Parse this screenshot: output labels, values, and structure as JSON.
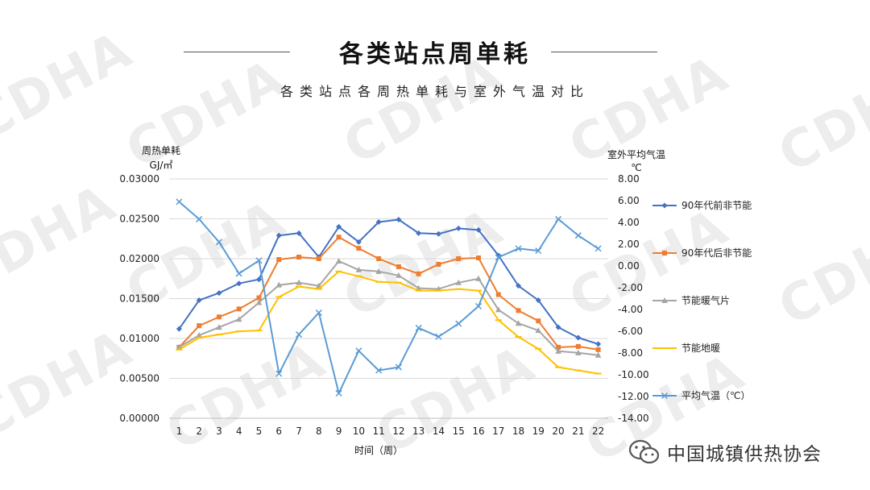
{
  "page": {
    "title": "各类站点周单耗",
    "subtitle": "各类站点各周热单耗与室外气温对比",
    "watermark": "CDHA",
    "brand": "中国城镇供热协会"
  },
  "chart_data": {
    "type": "line",
    "title": "各类站点各周热单耗与室外气温对比",
    "xlabel": "时间（周）",
    "ylabel_left": [
      "周热单耗",
      "GJ/㎡"
    ],
    "ylabel_right": [
      "室外平均气温",
      "℃"
    ],
    "categories": [
      1,
      2,
      3,
      4,
      5,
      6,
      7,
      8,
      9,
      10,
      11,
      12,
      13,
      14,
      15,
      16,
      17,
      18,
      19,
      20,
      21,
      22
    ],
    "y_left": {
      "min": 0,
      "max": 0.03,
      "step": 0.005,
      "ticks": [
        "0.00000",
        "0.00500",
        "0.01000",
        "0.01500",
        "0.02000",
        "0.02500",
        "0.03000"
      ]
    },
    "y_right": {
      "min": -14,
      "max": 8,
      "step": 2,
      "ticks": [
        "-14.00",
        "-12.00",
        "-10.00",
        "-8.00",
        "-6.00",
        "-4.00",
        "-2.00",
        "0.00",
        "2.00",
        "4.00",
        "6.00",
        "8.00"
      ]
    },
    "grid": true,
    "legend_position": "right",
    "series": [
      {
        "name": "90年代前非节能",
        "axis": "left",
        "color": "#4472C4",
        "marker": "diamond",
        "values": [
          0.0112,
          0.0148,
          0.0157,
          0.0169,
          0.0174,
          0.0229,
          0.0232,
          0.0202,
          0.024,
          0.0221,
          0.0246,
          0.0249,
          0.0232,
          0.0231,
          0.0238,
          0.0236,
          0.0204,
          0.0166,
          0.0148,
          0.0114,
          0.0101,
          0.0093
        ]
      },
      {
        "name": "90年代后非节能",
        "axis": "left",
        "color": "#ED7D31",
        "marker": "square",
        "values": [
          0.0089,
          0.0116,
          0.0127,
          0.0137,
          0.0151,
          0.0199,
          0.0202,
          0.02,
          0.0227,
          0.0213,
          0.02,
          0.019,
          0.0181,
          0.0193,
          0.02,
          0.0201,
          0.0155,
          0.0135,
          0.0122,
          0.0089,
          0.009,
          0.0086
        ]
      },
      {
        "name": "节能暖气片",
        "axis": "left",
        "color": "#A5A5A5",
        "marker": "triangle",
        "values": [
          0.0089,
          0.0104,
          0.0114,
          0.0124,
          0.0145,
          0.0167,
          0.017,
          0.0166,
          0.0197,
          0.0186,
          0.0184,
          0.0179,
          0.0163,
          0.0162,
          0.017,
          0.0175,
          0.0136,
          0.0119,
          0.011,
          0.0084,
          0.0082,
          0.0079
        ]
      },
      {
        "name": "节能地暖",
        "axis": "left",
        "color": "#FFC000",
        "marker": "dash",
        "values": [
          0.0086,
          0.0101,
          0.0105,
          0.0109,
          0.011,
          0.0152,
          0.0165,
          0.0162,
          0.0184,
          0.0178,
          0.0171,
          0.017,
          0.016,
          0.016,
          0.0162,
          0.016,
          0.0123,
          0.0102,
          0.0087,
          0.0064,
          0.006,
          0.0056
        ]
      },
      {
        "name": "平均气温（℃）",
        "axis": "right",
        "color": "#5B9BD5",
        "marker": "x",
        "values": [
          5.9,
          4.3,
          2.2,
          -0.7,
          0.5,
          -9.9,
          -6.3,
          -4.3,
          -11.7,
          -7.8,
          -9.6,
          -9.3,
          -5.7,
          -6.5,
          -5.3,
          -3.7,
          0.8,
          1.6,
          1.4,
          4.3,
          2.8,
          1.6
        ]
      }
    ]
  }
}
